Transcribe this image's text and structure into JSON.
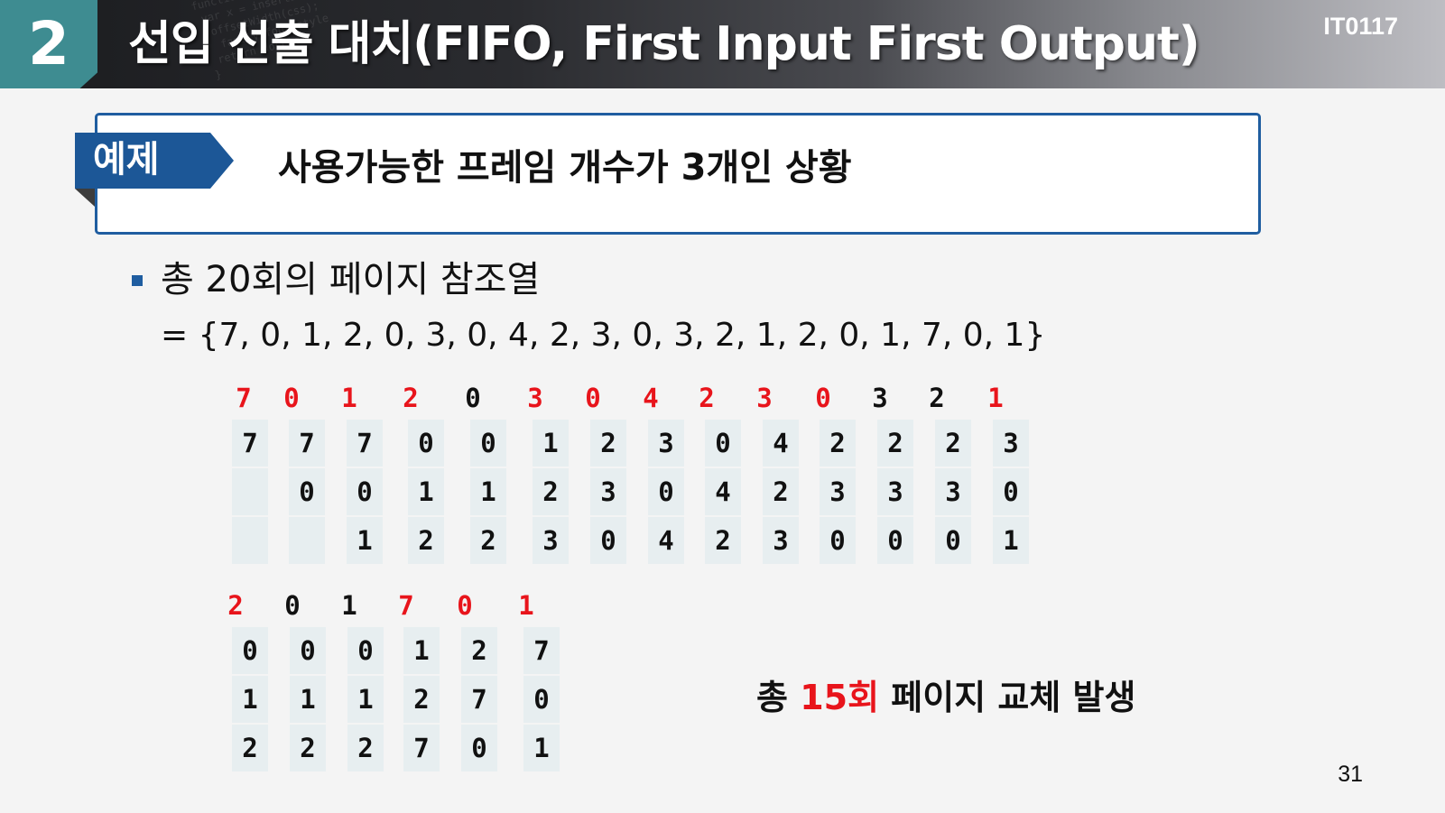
{
  "header": {
    "section_number": "2",
    "title": "선입 선출 대치(FIFO, First Input First Output)",
    "course_code": "IT0117"
  },
  "example": {
    "tag": "예제",
    "text": "사용가능한 프레임 개수가 3개인 상황"
  },
  "bullet": {
    "text": "총 20회의 페이지 참조열",
    "sequence": "= {7, 0, 1, 2, 0, 3, 0, 4, 2, 3, 0, 3, 2, 1, 2, 0, 1, 7, 0, 1}"
  },
  "row1": {
    "refs": [
      {
        "v": "7",
        "fault": true
      },
      {
        "v": "0",
        "fault": true
      },
      {
        "v": "1",
        "fault": true
      },
      {
        "v": "2",
        "fault": true
      },
      {
        "v": "0",
        "fault": false
      },
      {
        "v": "3",
        "fault": true
      },
      {
        "v": "0",
        "fault": true
      },
      {
        "v": "4",
        "fault": true
      },
      {
        "v": "2",
        "fault": true
      },
      {
        "v": "3",
        "fault": true
      },
      {
        "v": "0",
        "fault": true
      },
      {
        "v": "3",
        "fault": false
      },
      {
        "v": "2",
        "fault": false
      },
      {
        "v": "1",
        "fault": true
      }
    ],
    "frames": [
      [
        "7",
        "",
        ""
      ],
      [
        "7",
        "0",
        ""
      ],
      [
        "7",
        "0",
        "1"
      ],
      [
        "0",
        "1",
        "2"
      ],
      [
        "0",
        "1",
        "2"
      ],
      [
        "1",
        "2",
        "3"
      ],
      [
        "2",
        "3",
        "0"
      ],
      [
        "3",
        "0",
        "4"
      ],
      [
        "0",
        "4",
        "2"
      ],
      [
        "4",
        "2",
        "3"
      ],
      [
        "2",
        "3",
        "0"
      ],
      [
        "2",
        "3",
        "0"
      ],
      [
        "2",
        "3",
        "0"
      ],
      [
        "3",
        "0",
        "1"
      ]
    ]
  },
  "row2": {
    "refs": [
      {
        "v": "2",
        "fault": true
      },
      {
        "v": "0",
        "fault": false
      },
      {
        "v": "1",
        "fault": false
      },
      {
        "v": "7",
        "fault": true
      },
      {
        "v": "0",
        "fault": true
      },
      {
        "v": "1",
        "fault": true
      }
    ],
    "frames": [
      [
        "0",
        "1",
        "2"
      ],
      [
        "0",
        "1",
        "2"
      ],
      [
        "0",
        "1",
        "2"
      ],
      [
        "1",
        "2",
        "7"
      ],
      [
        "2",
        "7",
        "0"
      ],
      [
        "7",
        "0",
        "1"
      ]
    ]
  },
  "summary": {
    "prefix": "총 ",
    "highlight": "15회",
    "suffix": " 페이지 교체 발생"
  },
  "page_number": "31",
  "colors": {
    "accent_blue": "#1f5da0",
    "fault_red": "#e8141b",
    "badge_teal": "#3e8c91"
  }
}
